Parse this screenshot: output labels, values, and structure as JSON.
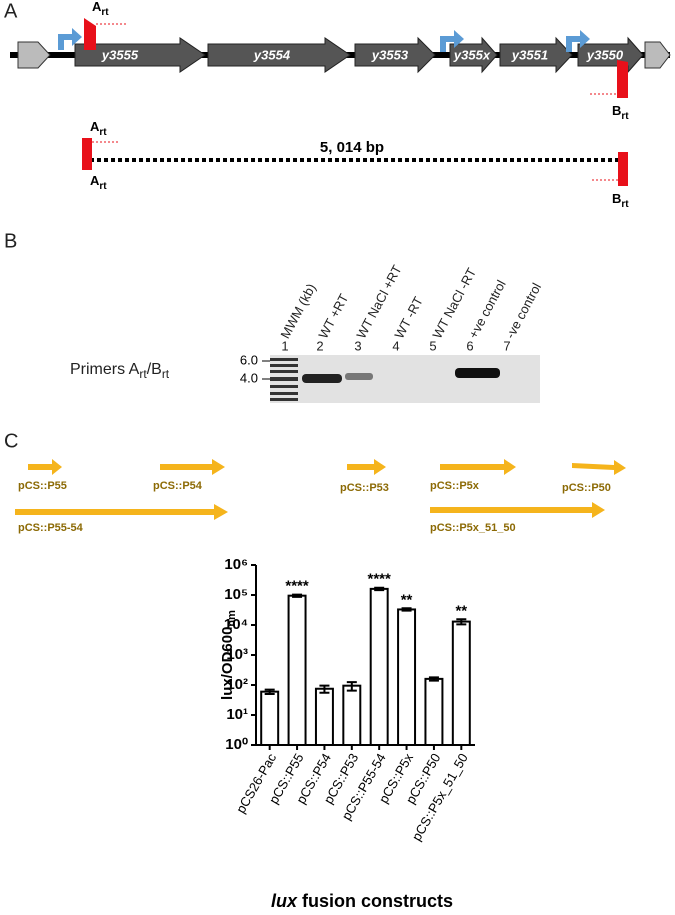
{
  "panels": [
    "A",
    "B",
    "C"
  ],
  "panel_a": {
    "genes": [
      "y3555",
      "y3554",
      "y3553",
      "y355x",
      "y3551",
      "y3550"
    ],
    "primer_a": "A",
    "primer_b": "B",
    "primer_sub": "rt",
    "product": "5, 014 bp"
  },
  "panel_b": {
    "lanes": [
      "MWM (kb)",
      "WT +RT",
      "WT NaCl +RT",
      "WT -RT",
      "WT NaCl -RT",
      "+ve control",
      "-ve control"
    ],
    "lane_numbers": [
      "1",
      "2",
      "3",
      "4",
      "5",
      "6",
      "7"
    ],
    "markers": [
      "6.0",
      "4.0"
    ],
    "row_label": "Primers A",
    "row_label_sub": "rt",
    "row_label_mid": "/B"
  },
  "panel_c": {
    "constructs": [
      "pCS::P55",
      "pCS::P54",
      "pCS::P55-54",
      "pCS::P53",
      "pCS::P5x",
      "pCS::P50",
      "pCS::P5x_51_50"
    ]
  },
  "chart_data": {
    "type": "bar",
    "log_scale": true,
    "color": "#ffffff",
    "ylabel": "lux/OD600",
    "ylabel_sub": "nm",
    "xlabel": [
      "lux",
      "fusion constructs"
    ],
    "categories": [
      "pCS26-Pac",
      "pCS::P55",
      "pCS::P54",
      "pCS::P53",
      "pCS::P55-54",
      "pCS::P5x",
      "pCS::P50",
      "pCS::P5x_51_50"
    ],
    "values": [
      60,
      95000,
      75,
      95,
      160000,
      33000,
      160,
      13000
    ],
    "errors": [
      10,
      8000,
      20,
      30,
      15000,
      3000,
      20,
      2500
    ],
    "significance": [
      null,
      "****",
      null,
      null,
      "****",
      "**",
      null,
      "**"
    ],
    "ylim": [
      1,
      1000000
    ],
    "yticks": [
      {
        "value": 1,
        "label": "10⁰"
      },
      {
        "value": 10,
        "label": "10¹"
      },
      {
        "value": 100,
        "label": "10²"
      },
      {
        "value": 1000,
        "label": "10³"
      },
      {
        "value": 10000,
        "label": "10⁴"
      },
      {
        "value": 100000,
        "label": "10⁵"
      },
      {
        "value": 1000000,
        "label": "10⁶"
      }
    ]
  }
}
